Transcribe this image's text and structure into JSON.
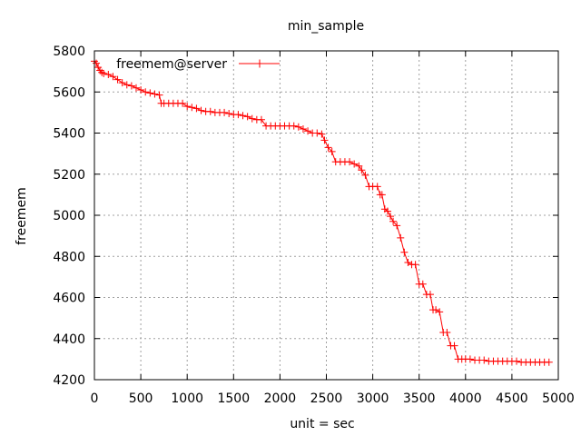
{
  "chart_data": {
    "type": "line",
    "title": "min_sample",
    "xlabel": "unit = sec",
    "ylabel": "freemem",
    "xlim": [
      0,
      5000
    ],
    "ylim": [
      4200,
      5800
    ],
    "x_ticks": [
      0,
      500,
      1000,
      1500,
      2000,
      2500,
      3000,
      3500,
      4000,
      4500,
      5000
    ],
    "y_ticks": [
      4200,
      4400,
      4600,
      4800,
      5000,
      5200,
      5400,
      5600,
      5800
    ],
    "grid": true,
    "legend_position": "top-left",
    "series": [
      {
        "name": "freemem@server",
        "color": "#ff0000",
        "marker": "plus",
        "x": [
          0,
          20,
          40,
          60,
          80,
          100,
          150,
          200,
          250,
          300,
          350,
          400,
          450,
          500,
          550,
          600,
          650,
          700,
          720,
          750,
          800,
          850,
          900,
          950,
          1000,
          1050,
          1100,
          1150,
          1200,
          1250,
          1300,
          1350,
          1400,
          1450,
          1500,
          1550,
          1600,
          1650,
          1700,
          1750,
          1800,
          1850,
          1900,
          1950,
          2000,
          2050,
          2100,
          2150,
          2200,
          2250,
          2300,
          2350,
          2400,
          2450,
          2480,
          2520,
          2560,
          2600,
          2650,
          2700,
          2750,
          2800,
          2850,
          2880,
          2920,
          2960,
          3000,
          3050,
          3080,
          3100,
          3130,
          3160,
          3190,
          3220,
          3260,
          3300,
          3340,
          3380,
          3420,
          3460,
          3500,
          3540,
          3580,
          3620,
          3650,
          3680,
          3720,
          3760,
          3800,
          3840,
          3880,
          3920,
          3960,
          4000,
          4050,
          4100,
          4150,
          4200,
          4250,
          4300,
          4350,
          4400,
          4450,
          4500,
          4550,
          4600,
          4650,
          4700,
          4750,
          4800,
          4850,
          4900
        ],
        "values": [
          5750,
          5740,
          5720,
          5705,
          5695,
          5690,
          5685,
          5675,
          5660,
          5645,
          5635,
          5630,
          5620,
          5610,
          5600,
          5595,
          5590,
          5585,
          5545,
          5545,
          5545,
          5545,
          5545,
          5545,
          5530,
          5525,
          5520,
          5510,
          5505,
          5505,
          5500,
          5500,
          5500,
          5495,
          5490,
          5490,
          5485,
          5480,
          5470,
          5465,
          5465,
          5435,
          5435,
          5435,
          5435,
          5435,
          5435,
          5435,
          5430,
          5420,
          5410,
          5400,
          5400,
          5395,
          5365,
          5330,
          5310,
          5260,
          5260,
          5260,
          5260,
          5250,
          5240,
          5220,
          5195,
          5140,
          5140,
          5140,
          5100,
          5100,
          5030,
          5020,
          4995,
          4970,
          4950,
          4890,
          4820,
          4770,
          4760,
          4760,
          4665,
          4665,
          4615,
          4615,
          4540,
          4540,
          4530,
          4430,
          4430,
          4365,
          4365,
          4300,
          4300,
          4300,
          4300,
          4295,
          4295,
          4295,
          4290,
          4290,
          4290,
          4290,
          4290,
          4290,
          4290,
          4285,
          4285,
          4285,
          4285,
          4285,
          4285,
          4285
        ]
      }
    ]
  }
}
